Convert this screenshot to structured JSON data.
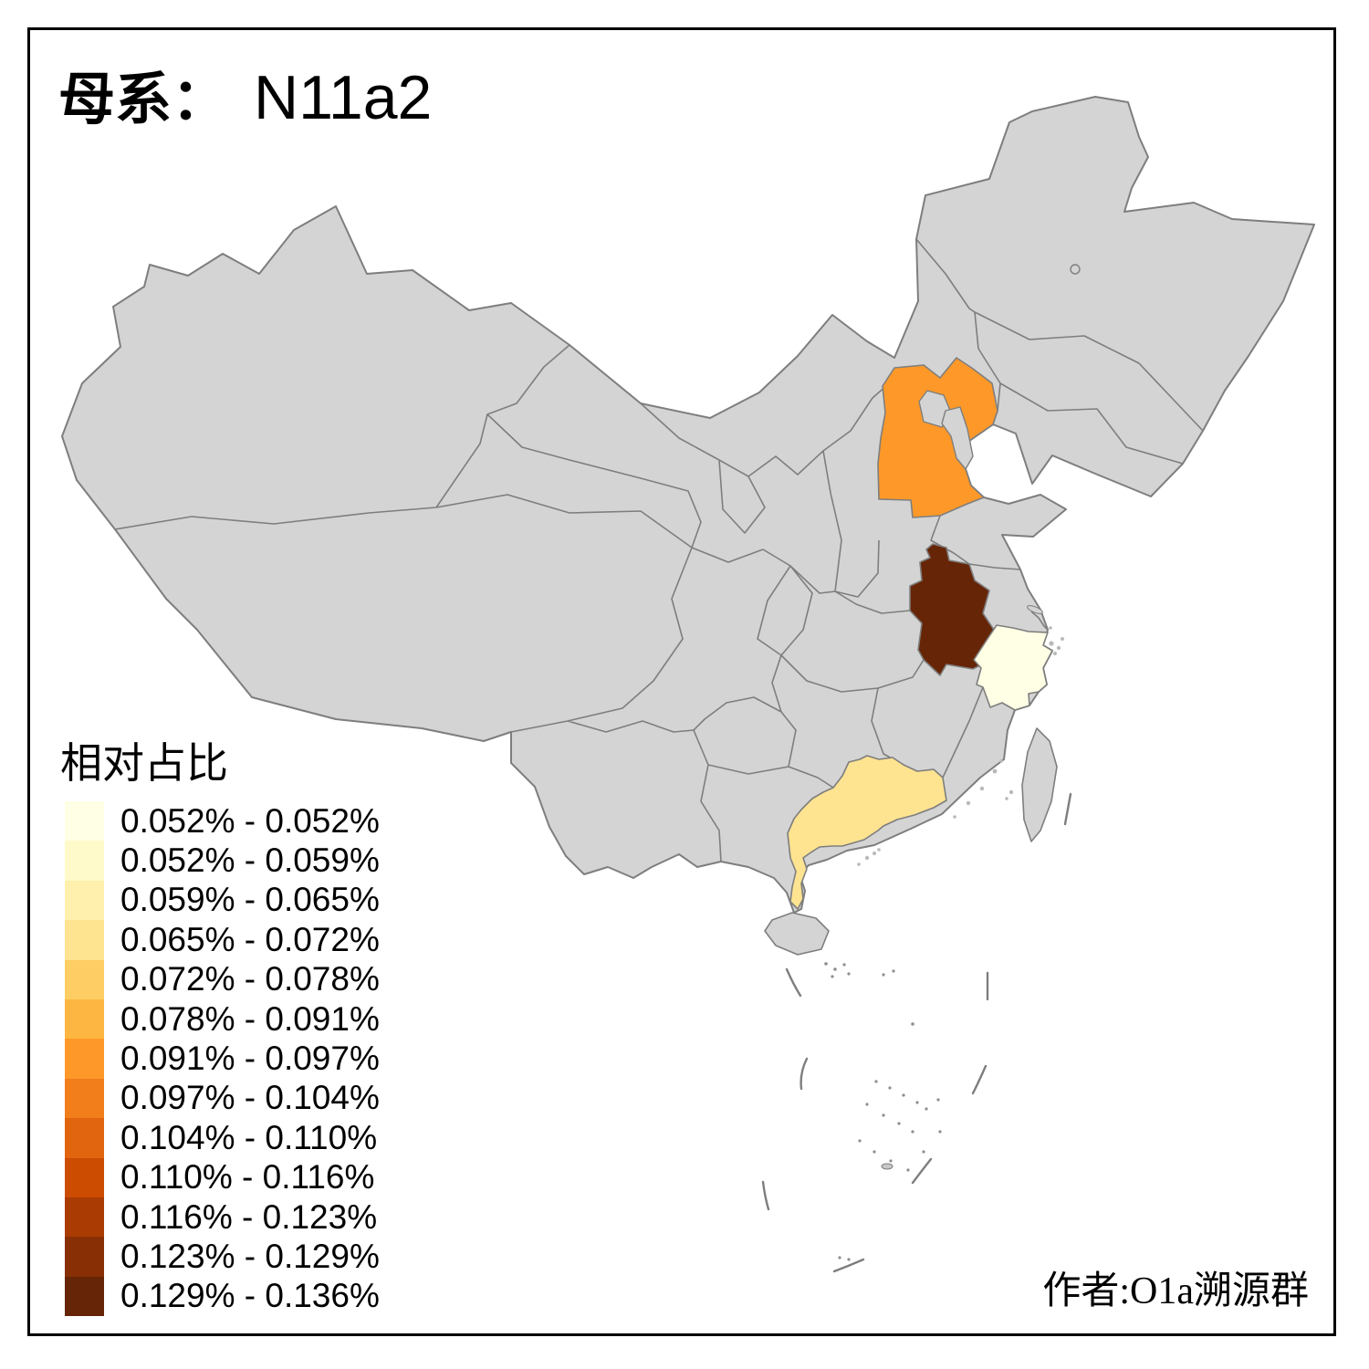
{
  "title": {
    "prefix": "母系：",
    "haplogroup": "N11a2"
  },
  "legend": {
    "title": "相对占比",
    "items": [
      {
        "label": "0.052% - 0.052%",
        "color": "#FFFFE5"
      },
      {
        "label": "0.052% - 0.059%",
        "color": "#FFFAC9"
      },
      {
        "label": "0.059% - 0.065%",
        "color": "#FFF0AE"
      },
      {
        "label": "0.065% - 0.072%",
        "color": "#FEE391"
      },
      {
        "label": "0.072% - 0.078%",
        "color": "#FECE65"
      },
      {
        "label": "0.078% - 0.091%",
        "color": "#FEB642"
      },
      {
        "label": "0.091% - 0.097%",
        "color": "#FE9929"
      },
      {
        "label": "0.097% - 0.104%",
        "color": "#F27D1B"
      },
      {
        "label": "0.104% - 0.110%",
        "color": "#E1640E"
      },
      {
        "label": "0.110% - 0.116%",
        "color": "#CC4C02"
      },
      {
        "label": "0.116% - 0.123%",
        "color": "#AA3C03"
      },
      {
        "label": "0.123% - 0.129%",
        "color": "#882F05"
      },
      {
        "label": "0.129% - 0.136%",
        "color": "#662506"
      }
    ]
  },
  "attribution": "作者:O1a溯源群",
  "map": {
    "land_color": "#D4D4D4",
    "border_color": "#7E7E7E",
    "sea_color": "#FFFFFF",
    "provinces": [
      {
        "name": "Hebei",
        "value_range": "0.091% - 0.097%",
        "color": "#FE9929"
      },
      {
        "name": "Anhui",
        "value_range": "0.129% - 0.136%",
        "color": "#662506"
      },
      {
        "name": "Zhejiang",
        "value_range": "0.052% - 0.052%",
        "color": "#FFFFE5"
      },
      {
        "name": "Guangdong",
        "value_range": "0.065% - 0.072%",
        "color": "#FEE391"
      }
    ]
  },
  "chart_data": {
    "type": "heatmap",
    "subtype": "choropleth-map",
    "title": "母系： N11a2",
    "legend_title": "相对占比",
    "legend_position": "bottom-left",
    "classes": [
      "0.052% - 0.052%",
      "0.052% - 0.059%",
      "0.059% - 0.065%",
      "0.065% - 0.072%",
      "0.072% - 0.078%",
      "0.078% - 0.091%",
      "0.091% - 0.097%",
      "0.097% - 0.104%",
      "0.104% - 0.110%",
      "0.110% - 0.116%",
      "0.116% - 0.123%",
      "0.123% - 0.129%",
      "0.129% - 0.136%"
    ],
    "regions": [
      {
        "name": "Hebei",
        "value_range": "0.091% - 0.097%"
      },
      {
        "name": "Anhui",
        "value_range": "0.129% - 0.136%"
      },
      {
        "name": "Zhejiang",
        "value_range": "0.052% - 0.052%"
      },
      {
        "name": "Guangdong",
        "value_range": "0.065% - 0.072%"
      }
    ],
    "no_data_regions_color": "#D4D4D4",
    "annotation": "作者:O1a溯源群"
  }
}
